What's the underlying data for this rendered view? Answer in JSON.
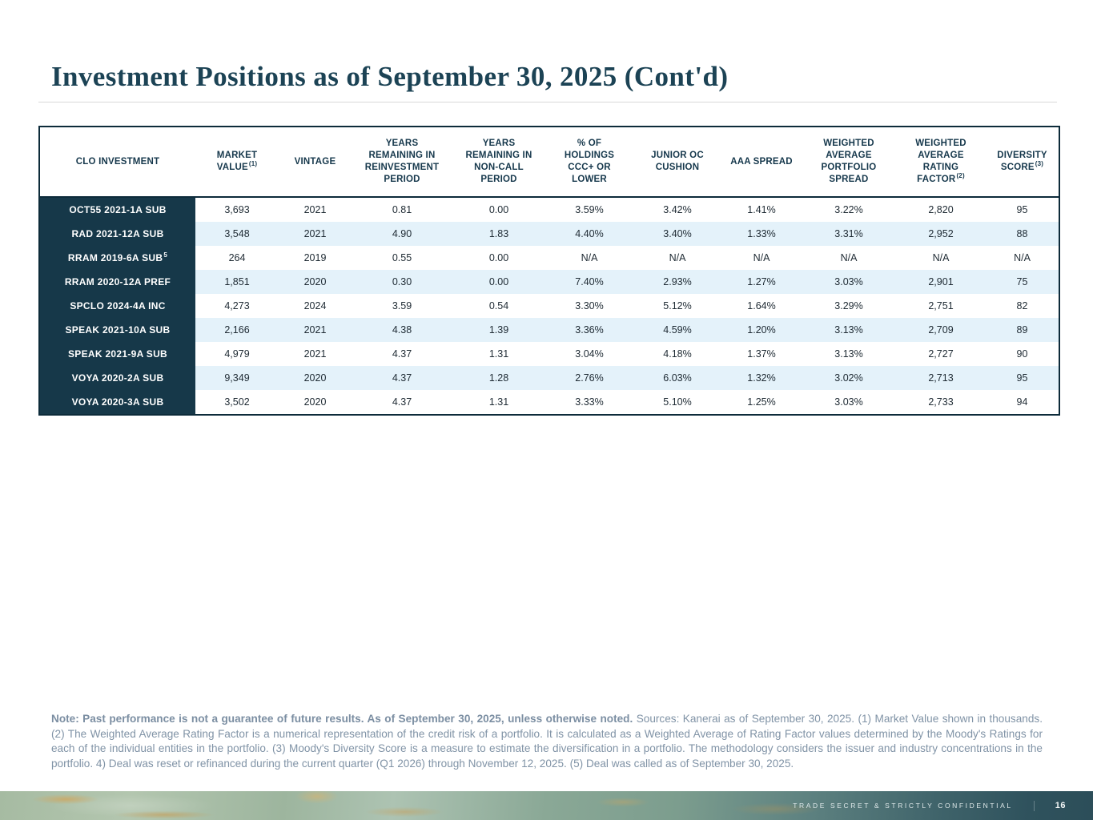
{
  "slide": {
    "title": "Investment Positions as of September 30, 2025 (Cont'd)",
    "footer_label": "TRADE SECRET & STRICTLY CONFIDENTIAL",
    "page_number": "16"
  },
  "table": {
    "columns": [
      {
        "label": "CLO INVESTMENT",
        "sup": ""
      },
      {
        "label": "MARKET VALUE",
        "sup": "(1)"
      },
      {
        "label": "VINTAGE",
        "sup": ""
      },
      {
        "label": "YEARS REMAINING IN REINVESTMENT PERIOD",
        "sup": ""
      },
      {
        "label": "YEARS REMAINING IN NON-CALL PERIOD",
        "sup": ""
      },
      {
        "label": "% OF HOLDINGS CCC+ OR LOWER",
        "sup": ""
      },
      {
        "label": "JUNIOR OC CUSHION",
        "sup": ""
      },
      {
        "label": "AAA SPREAD",
        "sup": ""
      },
      {
        "label": "WEIGHTED AVERAGE PORTFOLIO SPREAD",
        "sup": ""
      },
      {
        "label": "WEIGHTED AVERAGE RATING FACTOR",
        "sup": "(2)"
      },
      {
        "label": "DIVERSITY SCORE",
        "sup": "(3)"
      }
    ],
    "rows": [
      {
        "name": "OCT55 2021-1A SUB",
        "name_sup": "",
        "values": [
          "3,693",
          "2021",
          "0.81",
          "0.00",
          "3.59%",
          "3.42%",
          "1.41%",
          "3.22%",
          "2,820",
          "95"
        ]
      },
      {
        "name": "RAD 2021-12A SUB",
        "name_sup": "",
        "values": [
          "3,548",
          "2021",
          "4.90",
          "1.83",
          "4.40%",
          "3.40%",
          "1.33%",
          "3.31%",
          "2,952",
          "88"
        ]
      },
      {
        "name": "RRAM 2019-6A SUB",
        "name_sup": "5",
        "values": [
          "264",
          "2019",
          "0.55",
          "0.00",
          "N/A",
          "N/A",
          "N/A",
          "N/A",
          "N/A",
          "N/A"
        ]
      },
      {
        "name": "RRAM 2020-12A PREF",
        "name_sup": "",
        "values": [
          "1,851",
          "2020",
          "0.30",
          "0.00",
          "7.40%",
          "2.93%",
          "1.27%",
          "3.03%",
          "2,901",
          "75"
        ]
      },
      {
        "name": "SPCLO 2024-4A INC",
        "name_sup": "",
        "values": [
          "4,273",
          "2024",
          "3.59",
          "0.54",
          "3.30%",
          "5.12%",
          "1.64%",
          "3.29%",
          "2,751",
          "82"
        ]
      },
      {
        "name": "SPEAK 2021-10A SUB",
        "name_sup": "",
        "values": [
          "2,166",
          "2021",
          "4.38",
          "1.39",
          "3.36%",
          "4.59%",
          "1.20%",
          "3.13%",
          "2,709",
          "89"
        ]
      },
      {
        "name": "SPEAK 2021-9A SUB",
        "name_sup": "",
        "values": [
          "4,979",
          "2021",
          "4.37",
          "1.31",
          "3.04%",
          "4.18%",
          "1.37%",
          "3.13%",
          "2,727",
          "90"
        ]
      },
      {
        "name": "VOYA 2020-2A SUB",
        "name_sup": "",
        "values": [
          "9,349",
          "2020",
          "4.37",
          "1.28",
          "2.76%",
          "6.03%",
          "1.32%",
          "3.02%",
          "2,713",
          "95"
        ]
      },
      {
        "name": "VOYA 2020-3A SUB",
        "name_sup": "",
        "values": [
          "3,502",
          "2020",
          "4.37",
          "1.31",
          "3.33%",
          "5.10%",
          "1.25%",
          "3.03%",
          "2,733",
          "94"
        ]
      }
    ]
  },
  "note": {
    "bold": "Note: Past performance is not a guarantee of future results. As of September 30, 2025, unless otherwise noted.",
    "regular": " Sources: Kanerai as of September 30, 2025. (1) Market Value shown in thousands. (2) The Weighted Average Rating Factor is a numerical representation of the credit risk of a portfolio. It is calculated as a Weighted Average of Rating Factor values determined by the Moody's Ratings for each of the individual entities in the portfolio. (3) Moody's Diversity Score is a measure to estimate the diversification in a portfolio. The methodology considers the issuer and industry concentrations in the portfolio. 4) Deal was reset or refinanced during the current quarter (Q1 2026) through November 12, 2025. (5) Deal was called as of September 30, 2025."
  },
  "colors": {
    "title": "#1c4355",
    "header_text": "#16384c",
    "row_label_bg": "#163849",
    "row_stripe": "#e4f2fa",
    "table_border": "#0d2b3a",
    "note_text": "#8093a6",
    "footer_gold": "#cfa760",
    "footer_teal": "#2c4e59"
  }
}
